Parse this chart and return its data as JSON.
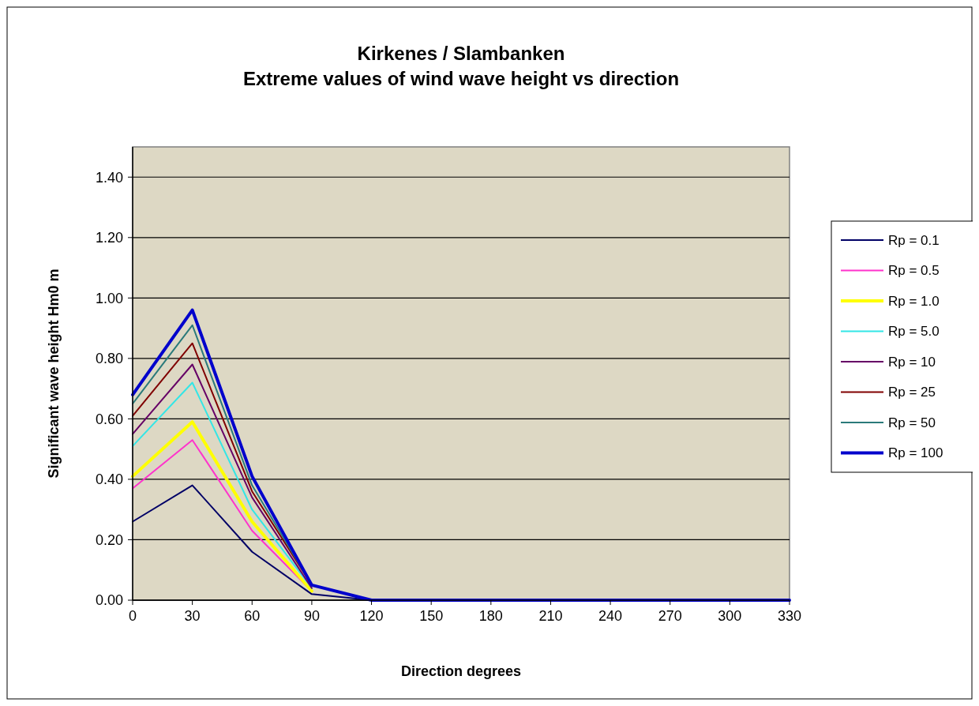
{
  "chart_data": {
    "type": "line",
    "title": "Kirkenes / Slambanken\nExtreme values of wind wave height vs direction",
    "xlabel": "Direction degrees",
    "ylabel": "Significant  wave height Hm0 m",
    "categories": [
      "0",
      "30",
      "60",
      "90",
      "120",
      "150",
      "180",
      "210",
      "240",
      "270",
      "300",
      "330"
    ],
    "series": [
      {
        "name": "Rp = 0.1",
        "color": "#000066",
        "values": [
          0.26,
          0.38,
          0.16,
          0.02,
          0.0,
          null,
          null,
          null,
          null,
          null,
          null,
          null
        ]
      },
      {
        "name": "Rp = 0.5",
        "color": "#ff33cc",
        "values": [
          0.37,
          0.53,
          0.23,
          0.03,
          null,
          null,
          null,
          null,
          null,
          null,
          null,
          null
        ]
      },
      {
        "name": "Rp = 1.0",
        "color": "#ffff00",
        "values": [
          0.41,
          0.59,
          0.26,
          0.03,
          null,
          null,
          null,
          null,
          null,
          null,
          null,
          null
        ]
      },
      {
        "name": "Rp = 5.0",
        "color": "#33e6e6",
        "values": [
          0.51,
          0.72,
          0.3,
          0.04,
          null,
          null,
          null,
          null,
          null,
          null,
          null,
          null
        ]
      },
      {
        "name": "Rp = 10",
        "color": "#660066",
        "values": [
          0.55,
          0.78,
          0.34,
          0.04,
          null,
          null,
          null,
          null,
          null,
          null,
          null,
          null
        ]
      },
      {
        "name": "Rp = 25",
        "color": "#800000",
        "values": [
          0.61,
          0.85,
          0.36,
          0.05,
          null,
          null,
          null,
          null,
          null,
          null,
          null,
          null
        ]
      },
      {
        "name": "Rp = 50",
        "color": "#2a7a7a",
        "values": [
          0.65,
          0.91,
          0.38,
          0.05,
          null,
          null,
          null,
          null,
          null,
          null,
          null,
          null
        ]
      },
      {
        "name": "Rp = 100",
        "color": "#0000cc",
        "values": [
          0.68,
          0.96,
          0.41,
          0.05,
          0.0,
          0.0,
          0.0,
          0.0,
          0.0,
          0.0,
          0.0,
          0.0
        ]
      }
    ],
    "ylim": [
      0,
      1.5
    ],
    "yticks": [
      {
        "value": 0,
        "label": "0.00"
      },
      {
        "value": 0.2,
        "label": "0.20"
      },
      {
        "value": 0.4,
        "label": "0.40"
      },
      {
        "value": 0.6,
        "label": "0.60"
      },
      {
        "value": 0.8,
        "label": "0.80"
      },
      {
        "value": 1.0,
        "label": "1.00"
      },
      {
        "value": 1.2,
        "label": "1.20"
      },
      {
        "value": 1.4,
        "label": "1.40"
      }
    ],
    "grid": "y",
    "legend": "right",
    "marker": "none",
    "line_style": "solid"
  }
}
